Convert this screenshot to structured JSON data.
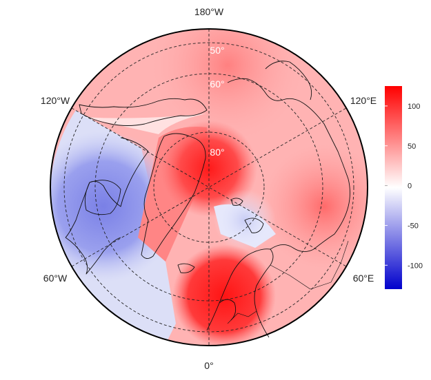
{
  "map": {
    "projection": "north-polar-stereographic",
    "longitude_labels": {
      "top": "180°W",
      "bottom": "0°",
      "upper_left": "120°W",
      "upper_right": "120°E",
      "lower_left": "60°W",
      "lower_right": "60°E"
    },
    "latitude_labels": [
      "80°",
      "60°",
      "50°"
    ],
    "features": [
      "coastlines",
      "country-borders",
      "graticule-dashed"
    ]
  },
  "colorbar": {
    "ticks": [
      "100",
      "50",
      "0",
      "-50",
      "-100"
    ],
    "tick_values": [
      100,
      50,
      0,
      -50,
      -100
    ],
    "range": [
      -130,
      125
    ],
    "colors": {
      "low": "#0000cc",
      "mid": "#ffffff",
      "high": "#ff0000"
    }
  }
}
